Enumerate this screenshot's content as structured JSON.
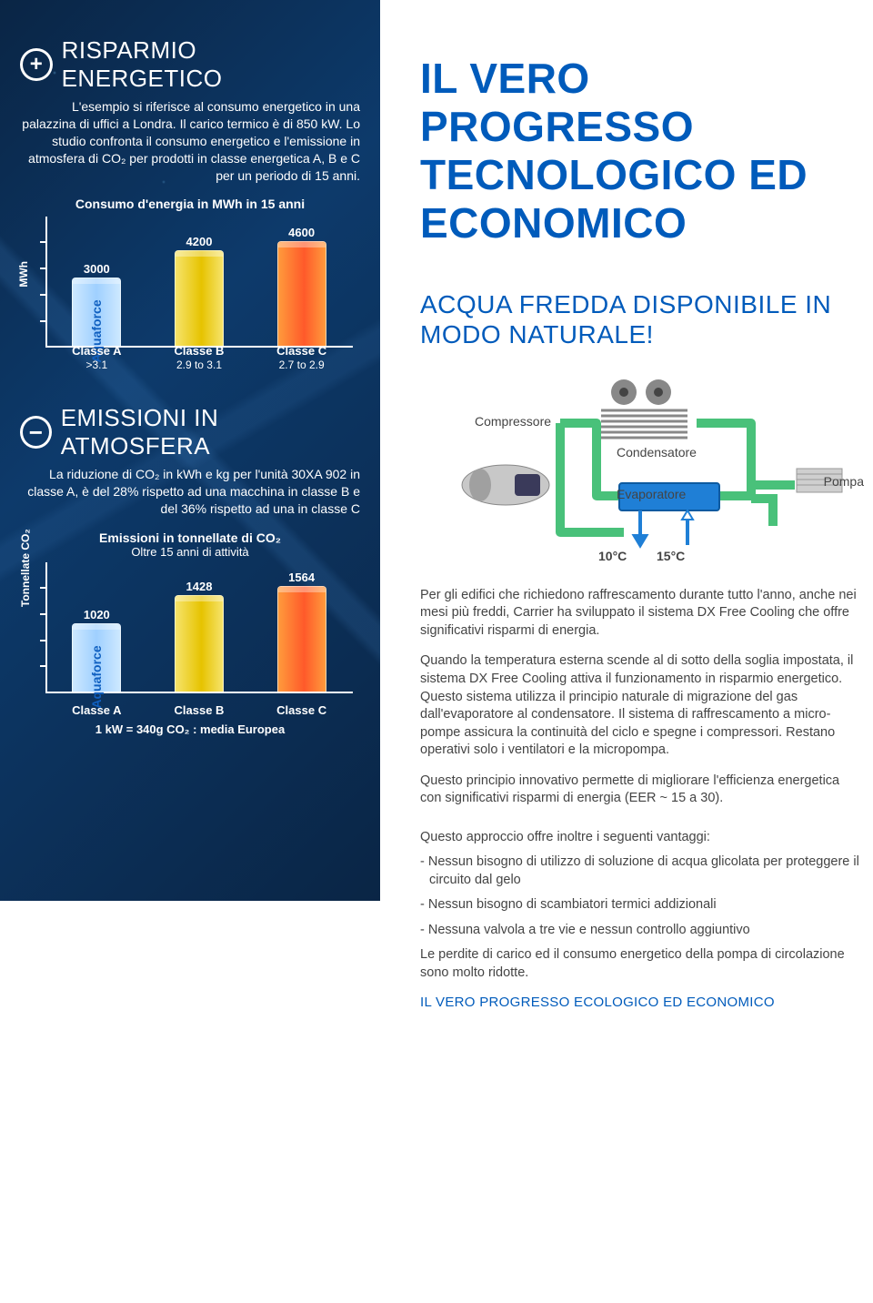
{
  "left": {
    "section1": {
      "title": "RISPARMIO ENERGETICO",
      "body": "L'esempio si riferisce al consumo energetico in una palazzina di uffici a Londra. Il carico termico è di 850 kW. Lo studio confronta il consumo energetico e l'emissione in atmosfera di CO₂ per prodotti in classe energetica A, B e C per un periodo di 15 anni.",
      "chart": {
        "type": "bar",
        "title": "Consumo d'energia in MWh in 15 anni",
        "y_label": "MWh",
        "y_max": 5000,
        "categories": [
          "Classe A",
          "Classe B",
          "Classe C"
        ],
        "sub_categories": [
          ">3.1",
          "2.9 to 3.1",
          "2.7 to 2.9"
        ],
        "values": [
          3000,
          4200,
          4600
        ],
        "bar_gradients": [
          [
            "#68c8ff",
            "#2a8de0"
          ],
          [
            "#f6e36a",
            "#e6c300"
          ],
          [
            "#ff9a3c",
            "#ff5a2a"
          ]
        ],
        "aquaforce_on_bar_index": 0,
        "aquaforce_label": "Aquaforce"
      }
    },
    "section2": {
      "title": "EMISSIONI IN ATMOSFERA",
      "body": "La riduzione di CO₂ in kWh e kg per l'unità 30XA 902 in classe A, è del 28% rispetto ad una macchina in classe B e del 36% rispetto ad una in classe C",
      "chart": {
        "type": "bar",
        "title": "Emissioni in tonnellate di CO₂",
        "subtitle": "Oltre 15 anni di attività",
        "y_label": "Tonnellate CO₂",
        "y_max": 1700,
        "categories": [
          "Classe A",
          "Classe B",
          "Classe C"
        ],
        "values": [
          1020,
          1428,
          1564
        ],
        "bar_gradients": [
          [
            "#68c8ff",
            "#2a8de0"
          ],
          [
            "#f6e36a",
            "#e6c300"
          ],
          [
            "#ff9a3c",
            "#ff5a2a"
          ]
        ],
        "aquaforce_on_bar_index": 0,
        "aquaforce_label": "Aquaforce",
        "footnote": "1 kW = 340g CO₂ : media Europea"
      }
    }
  },
  "right": {
    "headline": "IL VERO PROGRESSO TECNOLOGICO ED ECONOMICO",
    "subhead": "ACQUA FREDDA DISPONIBILE IN MODO NATURALE!",
    "diagram": {
      "labels": {
        "compressor": "Compressore",
        "condenser": "Condensatore",
        "evaporator": "Evaporatore",
        "pump": "Pompa",
        "temp_cold": "10°C",
        "temp_warm": "15°C"
      },
      "pipe_color": "#49c17a",
      "water_color": "#1f7fd6"
    },
    "paragraphs": [
      "Per gli edifici che richiedono raffrescamento durante tutto l'anno, anche nei mesi più freddi, Carrier ha sviluppato il sistema DX Free Cooling che offre significativi risparmi di energia.",
      "Quando la temperatura esterna scende al di sotto della soglia impostata, il sistema DX Free Cooling attiva il funzionamento in risparmio energetico. Questo sistema utilizza il principio naturale di migrazione del gas dall'evaporatore al condensatore. Il sistema di raffrescamento a micro-pompe assicura la continuità del ciclo e spegne i compressori. Restano operativi solo i ventilatori e la micropompa.",
      "Questo principio innovativo permette di migliorare l'efficienza energetica con significativi risparmi di energia (EER ~ 15 a 30)."
    ],
    "advantages_head": "Questo approccio offre inoltre i seguenti vantaggi:",
    "advantages": [
      "- Nessun bisogno di utilizzo di soluzione di acqua glicolata per proteggere il circuito dal gelo",
      "- Nessun bisogno di scambiatori termici addizionali",
      "- Nessuna valvola a tre vie e nessun controllo aggiuntivo"
    ],
    "closing_pre": "Le perdite di carico ed il consumo energetico della pompa di circolazione sono molto ridotte.",
    "closing": "IL VERO PROGRESSO ECOLOGICO ED ECONOMICO"
  }
}
